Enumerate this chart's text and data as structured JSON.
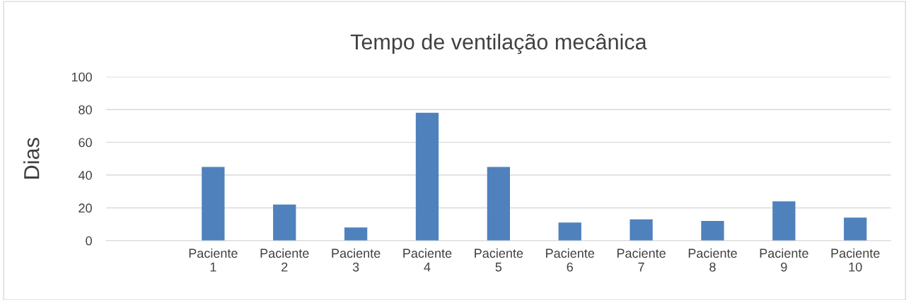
{
  "chart_data": {
    "type": "bar",
    "title": "Tempo de ventilação mecânica",
    "ylabel": "Dias",
    "categories": [
      null,
      "Paciente 1",
      "Paciente 2",
      "Paciente 3",
      "Paciente 4",
      "Paciente 5",
      "Paciente 6",
      "Paciente 7",
      "Paciente 8",
      "Paciente 9",
      "Paciente 10"
    ],
    "values": [
      null,
      45,
      22,
      8,
      78,
      45,
      11,
      13,
      12,
      24,
      14
    ],
    "color": "#4f81bd",
    "ylim": [
      0,
      100
    ],
    "yticks": [
      0,
      20,
      40,
      60,
      80,
      100
    ],
    "grid": "y",
    "legend": false
  }
}
